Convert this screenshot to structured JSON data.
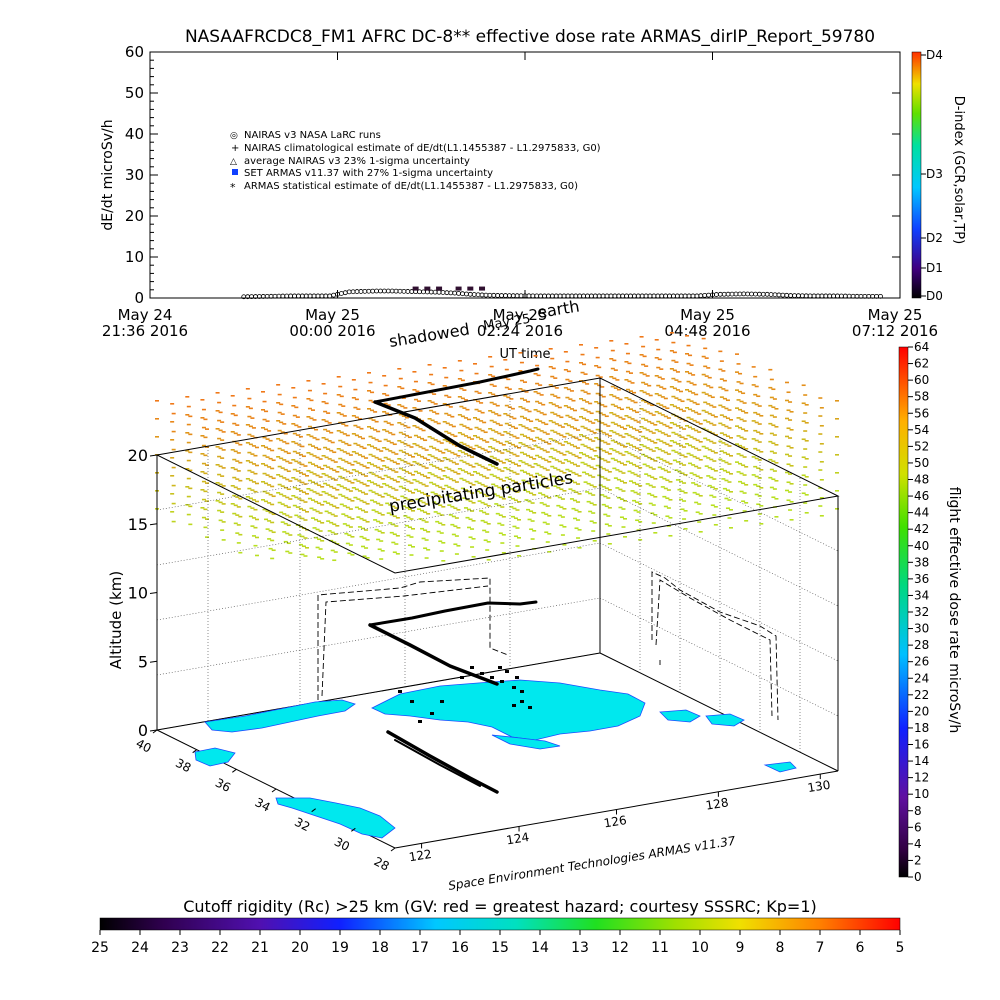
{
  "title": "NASAAFRCDC8_FM1 AFRC DC-8** effective dose rate ARMAS_dirIP_Report_59780",
  "chart_data": [
    {
      "type": "scatter",
      "ylabel": "dE/dt microSv/h",
      "ylim": [
        0,
        60
      ],
      "yticks": [
        "0",
        "10",
        "20",
        "30",
        "40",
        "50",
        "60"
      ],
      "xlabel": "UT time",
      "xticks": [
        {
          "line1": "May 24",
          "line2": "21:36 2016"
        },
        {
          "line1": "May 25",
          "line2": "00:00 2016"
        },
        {
          "line1": "May 25",
          "line2": "02:24 2016"
        },
        {
          "line1": "May 25",
          "line2": "04:48 2016"
        },
        {
          "line1": "May 25",
          "line2": "07:12 2016"
        }
      ],
      "xrange_hours": [
        0,
        9.6
      ],
      "legend": [
        "NAIRAS v3 NASA LaRC runs",
        "NAIRAS climatological estimate of dE/dt(L1.1455387 - L1.2975833, G0)",
        "average NAIRAS v3 23% 1-sigma uncertainty",
        "SET ARMAS v11.37 with 27% 1-sigma uncertainty",
        "ARMAS statistical estimate of dE/dt(L1.1455387 - L1.2975833, G0)"
      ],
      "legend_placement": "upper-left",
      "series": [
        {
          "name": "NAIRAS v3 NASA LaRC runs",
          "color": "#000000",
          "x_hours": [
            1.2,
            1.5,
            1.8,
            2.1,
            2.3,
            2.55,
            2.7,
            2.9,
            3.1,
            3.3,
            3.5,
            3.7,
            3.9,
            4.1,
            4.3,
            4.5,
            5.0,
            5.5,
            6.0,
            6.5,
            7.0,
            7.3,
            7.6,
            7.9,
            8.2,
            8.5,
            8.8,
            9.1,
            9.4
          ],
          "y": [
            0.3,
            0.4,
            0.5,
            0.5,
            0.5,
            1.5,
            1.6,
            1.7,
            1.7,
            1.6,
            1.5,
            1.4,
            1.2,
            0.9,
            0.7,
            0.6,
            0.5,
            0.5,
            0.5,
            0.5,
            0.5,
            0.9,
            1.0,
            0.9,
            0.6,
            0.5,
            0.5,
            0.4,
            0.4
          ]
        },
        {
          "name": "SET ARMAS v11.37 with 27% 1-sigma uncertainty",
          "color": "#301030",
          "x_hours": [
            3.4,
            3.55,
            3.7,
            3.95,
            4.1,
            4.25
          ],
          "y": [
            2.3,
            2.3,
            2.3,
            2.3,
            2.3,
            2.3
          ]
        }
      ],
      "right_axis": {
        "label": "D-index (GCR,solar,TP)",
        "ticks": [
          "D0",
          "D1",
          "D2",
          "D3",
          "D4"
        ]
      }
    },
    {
      "type": "3d-map",
      "zlabel": "Altitude (km)",
      "zticks": [
        "0",
        "5",
        "10",
        "15",
        "20"
      ],
      "lat_ticks": [
        "40",
        "38",
        "36",
        "34",
        "32",
        "30",
        "28"
      ],
      "lon_ticks": [
        "122",
        "124",
        "126",
        "128",
        "130"
      ],
      "annotations": [
        "precipitating particles",
        "shadowed",
        "earth",
        "May 25"
      ],
      "footer": "Space Environment Technologies ARMAS v11.37",
      "colorbar_right": {
        "label": "flight effective dose rate microSv/h",
        "ticks": [
          "0",
          "2",
          "4",
          "6",
          "8",
          "10",
          "12",
          "14",
          "16",
          "18",
          "20",
          "22",
          "24",
          "26",
          "28",
          "30",
          "32",
          "34",
          "36",
          "38",
          "40",
          "42",
          "44",
          "46",
          "48",
          "50",
          "52",
          "54",
          "56",
          "58",
          "60",
          "62",
          "64"
        ]
      },
      "colorbar_bottom": {
        "label": "Cutoff rigidity (Rc) >25 km (GV: red = greatest hazard; courtesy SSSRC; Kp=1)",
        "ticks": [
          "25",
          "24",
          "23",
          "22",
          "21",
          "20",
          "19",
          "18",
          "17",
          "16",
          "15",
          "14",
          "13",
          "12",
          "11",
          "10",
          "9",
          "8",
          "7",
          "6",
          "5"
        ]
      }
    }
  ],
  "colors": {
    "land_fill": "#00e8ee",
    "dose_low": "#b8e020",
    "dose_high": "#f07818"
  }
}
